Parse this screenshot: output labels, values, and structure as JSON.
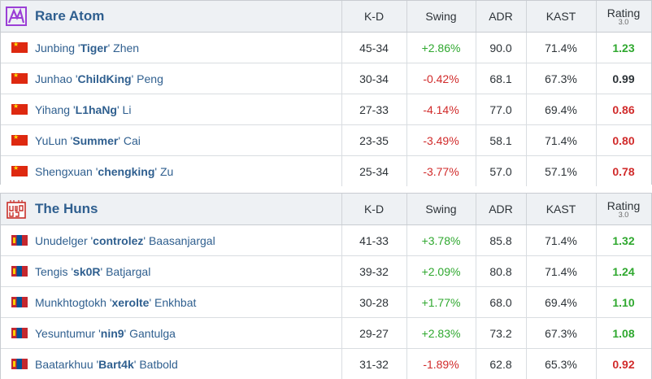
{
  "teams": [
    {
      "name": "Rare Atom",
      "logo_icon": "rare-atom-logo",
      "headers": {
        "kd": "K-D",
        "swing": "Swing",
        "adr": "ADR",
        "kast": "KAST",
        "rating": "Rating",
        "rating_sub": "3.0"
      },
      "players": [
        {
          "first": "Junbing '",
          "nick": "Tiger",
          "last": "' Zhen",
          "flag": "CN",
          "kd": "45-34",
          "swing": "+2.86%",
          "adr": "90.0",
          "kast": "71.4%",
          "rating": "1.23"
        },
        {
          "first": "Junhao '",
          "nick": "ChildKing",
          "last": "' Peng",
          "flag": "CN",
          "kd": "30-34",
          "swing": "-0.42%",
          "adr": "68.1",
          "kast": "67.3%",
          "rating": "0.99"
        },
        {
          "first": "Yihang '",
          "nick": "L1haNg",
          "last": "' Li",
          "flag": "CN",
          "kd": "27-33",
          "swing": "-4.14%",
          "adr": "77.0",
          "kast": "69.4%",
          "rating": "0.86"
        },
        {
          "first": "YuLun '",
          "nick": "Summer",
          "last": "' Cai",
          "flag": "CN",
          "kd": "23-35",
          "swing": "-3.49%",
          "adr": "58.1",
          "kast": "71.4%",
          "rating": "0.80"
        },
        {
          "first": "Shengxuan '",
          "nick": "chengking",
          "last": "' Zu",
          "flag": "CN",
          "kd": "25-34",
          "swing": "-3.77%",
          "adr": "57.0",
          "kast": "57.1%",
          "rating": "0.78"
        }
      ]
    },
    {
      "name": "The Huns",
      "logo_icon": "the-huns-logo",
      "headers": {
        "kd": "K-D",
        "swing": "Swing",
        "adr": "ADR",
        "kast": "KAST",
        "rating": "Rating",
        "rating_sub": "3.0"
      },
      "players": [
        {
          "first": "Unudelger '",
          "nick": "controlez",
          "last": "' Baasanjargal",
          "flag": "MN",
          "kd": "41-33",
          "swing": "+3.78%",
          "adr": "85.8",
          "kast": "71.4%",
          "rating": "1.32"
        },
        {
          "first": "Tengis '",
          "nick": "sk0R",
          "last": "' Batjargal",
          "flag": "MN",
          "kd": "39-32",
          "swing": "+2.09%",
          "adr": "80.8",
          "kast": "71.4%",
          "rating": "1.24"
        },
        {
          "first": "Munkhtogtokh '",
          "nick": "xerolte",
          "last": "' Enkhbat",
          "flag": "MN",
          "kd": "30-28",
          "swing": "+1.77%",
          "adr": "68.0",
          "kast": "69.4%",
          "rating": "1.10"
        },
        {
          "first": "Yesuntumur '",
          "nick": "nin9",
          "last": "' Gantulga",
          "flag": "MN",
          "kd": "29-27",
          "swing": "+2.83%",
          "adr": "73.2",
          "kast": "67.3%",
          "rating": "1.08"
        },
        {
          "first": "Baatarkhuu '",
          "nick": "Bart4k",
          "last": "' Batbold",
          "flag": "MN",
          "kd": "31-32",
          "swing": "-1.89%",
          "adr": "62.8",
          "kast": "65.3%",
          "rating": "0.92"
        }
      ]
    }
  ],
  "colors": {
    "positive": "#2fa82f",
    "negative": "#d12b2b",
    "link": "#2f5f8f"
  }
}
